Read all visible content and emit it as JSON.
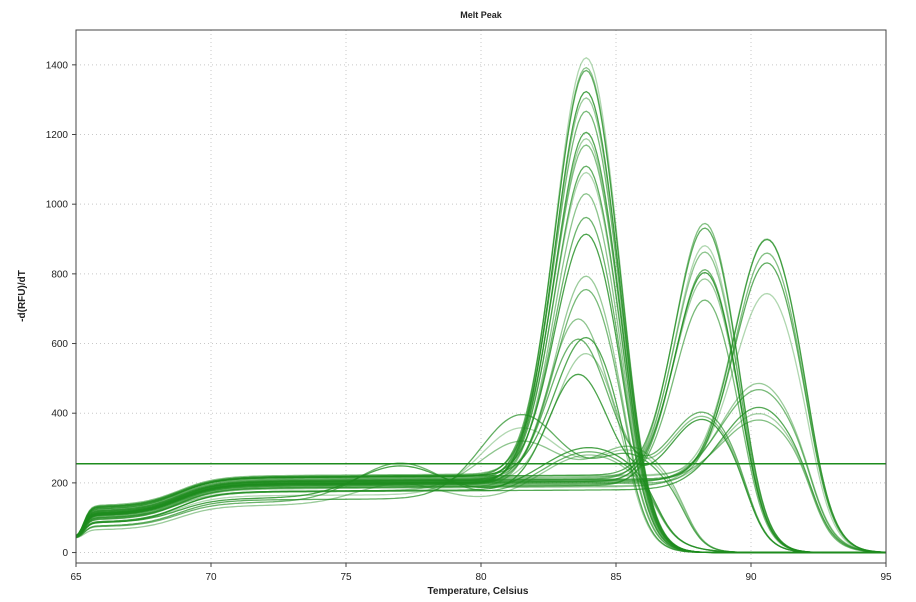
{
  "chart_data": {
    "type": "line",
    "title": "Melt Peak",
    "xlabel": "Temperature, Celsius",
    "ylabel": "-d(RFU)/dT",
    "xlim": [
      65,
      95
    ],
    "ylim": [
      -30,
      1500
    ],
    "x_ticks": [
      65,
      70,
      75,
      80,
      85,
      90,
      95
    ],
    "y_ticks": [
      0,
      200,
      400,
      600,
      800,
      1000,
      1200,
      1400
    ],
    "grid": true,
    "legend": "none",
    "line_color": "#1e8c1e",
    "threshold": 255,
    "profiles": {
      "a": {
        "base": 120,
        "mid": 205,
        "peaks": [
          [
            83.9,
            1100,
            1.15
          ]
        ]
      },
      "b": {
        "base": 110,
        "mid": 200,
        "peaks": [
          [
            88.3,
            700,
            1.1
          ]
        ]
      },
      "c": {
        "base": 110,
        "mid": 200,
        "peaks": [
          [
            90.6,
            680,
            1.2
          ]
        ]
      },
      "d": {
        "base": 100,
        "mid": 190,
        "peaks": [
          [
            83.6,
            350,
            1.1
          ],
          [
            88.2,
            200,
            1.2
          ]
        ]
      },
      "e": {
        "base": 100,
        "mid": 185,
        "peaks": [
          [
            90.3,
            270,
            1.4
          ]
        ]
      },
      "f": {
        "base": 85,
        "mid": 160,
        "peaks": [
          [
            81.5,
            220,
            1.5
          ],
          [
            85.5,
            120,
            1.2
          ]
        ]
      },
      "g": {
        "base": 80,
        "mid": 150,
        "peaks": [
          [
            77,
            100,
            1.6
          ],
          [
            84,
            140,
            1.8
          ]
        ]
      }
    },
    "series": [
      {
        "profile": "a",
        "peak": 1430
      },
      {
        "profile": "a",
        "peak": 1390
      },
      {
        "profile": "a",
        "peak": 1370
      },
      {
        "profile": "a",
        "peak": 1330
      },
      {
        "profile": "a",
        "peak": 1300
      },
      {
        "profile": "a",
        "peak": 1250
      },
      {
        "profile": "a",
        "peak": 1210
      },
      {
        "profile": "a",
        "peak": 1180
      },
      {
        "profile": "a",
        "peak": 1150
      },
      {
        "profile": "a",
        "peak": 1110
      },
      {
        "profile": "a",
        "peak": 1080
      },
      {
        "profile": "a",
        "peak": 1040
      },
      {
        "profile": "a",
        "peak": 960
      },
      {
        "profile": "a",
        "peak": 900
      },
      {
        "profile": "a",
        "peak": 800
      },
      {
        "profile": "a",
        "peak": 750
      },
      {
        "profile": "a",
        "peak": 600
      },
      {
        "profile": "a",
        "peak": 575
      },
      {
        "profile": "b",
        "peak": 935
      },
      {
        "profile": "b",
        "peak": 910
      },
      {
        "profile": "b",
        "peak": 880
      },
      {
        "profile": "b",
        "peak": 850
      },
      {
        "profile": "b",
        "peak": 820
      },
      {
        "profile": "b",
        "peak": 800
      },
      {
        "profile": "b",
        "peak": 770
      },
      {
        "profile": "b",
        "peak": 730
      },
      {
        "profile": "c",
        "peak": 890
      },
      {
        "profile": "c",
        "peak": 880
      },
      {
        "profile": "c",
        "peak": 860
      },
      {
        "profile": "c",
        "peak": 820
      },
      {
        "profile": "c",
        "peak": 720
      },
      {
        "profile": "d",
        "peak": 670
      },
      {
        "profile": "d",
        "peak": 600
      },
      {
        "profile": "d",
        "peak": 520
      },
      {
        "profile": "e",
        "peak": 480
      },
      {
        "profile": "e",
        "peak": 450
      },
      {
        "profile": "e",
        "peak": 420
      },
      {
        "profile": "e",
        "peak": 390
      },
      {
        "profile": "e",
        "peak": 360
      },
      {
        "profile": "f",
        "peak": 400
      },
      {
        "profile": "f",
        "peak": 350
      },
      {
        "profile": "f",
        "peak": 300
      },
      {
        "profile": "g",
        "peak": 260
      },
      {
        "profile": "g",
        "peak": 240
      },
      {
        "profile": "g",
        "peak": 210
      }
    ]
  }
}
